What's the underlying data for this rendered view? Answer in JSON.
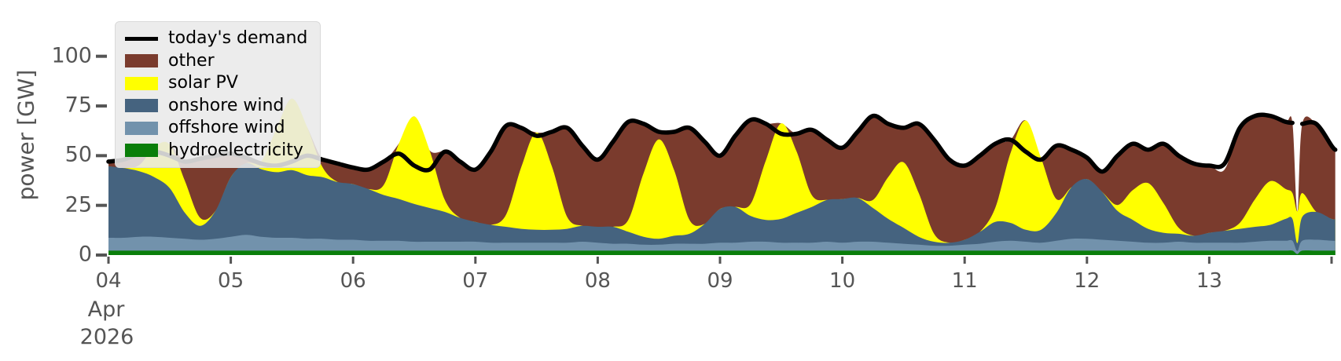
{
  "chart_data": {
    "type": "area",
    "stacked": true,
    "title": "",
    "xlabel": "",
    "ylabel": "power [GW]",
    "ylim": [
      0,
      100
    ],
    "grid": false,
    "legend_position": "upper left",
    "x_sublabel_month": "Apr",
    "x_sublabel_year": "2026",
    "x_ticks": [
      {
        "t": 4,
        "label": "04"
      },
      {
        "t": 5,
        "label": "05"
      },
      {
        "t": 6,
        "label": "06"
      },
      {
        "t": 7,
        "label": "07"
      },
      {
        "t": 8,
        "label": "08"
      },
      {
        "t": 9,
        "label": "09"
      },
      {
        "t": 10,
        "label": "10"
      },
      {
        "t": 11,
        "label": "11"
      },
      {
        "t": 12,
        "label": "12"
      },
      {
        "t": 13,
        "label": "13"
      },
      {
        "t": 14,
        "label": ""
      }
    ],
    "y_ticks": [
      {
        "v": 0,
        "label": "0"
      },
      {
        "v": 25,
        "label": "25"
      },
      {
        "v": 50,
        "label": "50"
      },
      {
        "v": 75,
        "label": "75"
      },
      {
        "v": 100,
        "label": "100"
      }
    ],
    "t": [
      4.0,
      4.125,
      4.25,
      4.375,
      4.5,
      4.625,
      4.75,
      4.875,
      5.0,
      5.125,
      5.25,
      5.375,
      5.5,
      5.625,
      5.75,
      5.875,
      6.0,
      6.125,
      6.25,
      6.375,
      6.5,
      6.625,
      6.75,
      6.875,
      7.0,
      7.125,
      7.25,
      7.375,
      7.5,
      7.625,
      7.75,
      7.875,
      8.0,
      8.125,
      8.25,
      8.375,
      8.5,
      8.625,
      8.75,
      8.875,
      9.0,
      9.125,
      9.25,
      9.375,
      9.5,
      9.625,
      9.75,
      9.875,
      10.0,
      10.125,
      10.25,
      10.375,
      10.5,
      10.625,
      10.75,
      10.875,
      11.0,
      11.125,
      11.25,
      11.375,
      11.5,
      11.625,
      11.75,
      11.875,
      12.0,
      12.125,
      12.25,
      12.375,
      12.5,
      12.625,
      12.75,
      12.875,
      13.0,
      13.125,
      13.25,
      13.375,
      13.5,
      13.625,
      13.68,
      13.72,
      13.76,
      13.875,
      14.0,
      14.03
    ],
    "series": [
      {
        "name": "hydroelectricity",
        "color": "#0A7E0A",
        "values": [
          2.2,
          2.2,
          2.2,
          2.2,
          2.2,
          2.2,
          2.2,
          2.2,
          2.2,
          2.2,
          2.2,
          2.2,
          2.2,
          2.2,
          2.2,
          2.2,
          2.2,
          2.2,
          2.2,
          2.2,
          2.2,
          2.2,
          2.2,
          2.2,
          2.2,
          2.2,
          2.2,
          2.2,
          2.2,
          2.2,
          2.2,
          2.2,
          2.2,
          2.2,
          2.2,
          2.2,
          2.2,
          2.2,
          2.2,
          2.2,
          2.2,
          2.2,
          2.2,
          2.2,
          2.2,
          2.2,
          2.2,
          2.2,
          2.2,
          2.2,
          2.2,
          2.2,
          2.2,
          2.2,
          2.2,
          2.2,
          2.2,
          2.2,
          2.2,
          2.2,
          2.2,
          2.2,
          2.2,
          2.2,
          2.2,
          2.2,
          2.2,
          2.2,
          2.2,
          2.2,
          2.2,
          2.2,
          2.2,
          2.2,
          2.2,
          2.2,
          2.2,
          2.2,
          2.2,
          0.5,
          2.2,
          2.2,
          2.2,
          2.2
        ]
      },
      {
        "name": "offshore wind",
        "color": "#7292AC",
        "values": [
          6.5,
          6.5,
          7,
          7,
          6.5,
          6,
          5.5,
          6,
          7,
          8,
          7,
          6.5,
          6.5,
          6,
          6,
          5.5,
          5.5,
          5,
          5,
          5,
          4.5,
          4.5,
          4.5,
          4.5,
          4.5,
          4,
          4,
          4,
          4,
          4,
          4,
          4.5,
          4,
          3.5,
          3.5,
          3,
          3,
          3.5,
          3.5,
          3.5,
          4,
          4,
          4.5,
          4.5,
          4,
          4,
          4,
          4.5,
          4,
          4.5,
          4.5,
          4,
          3.5,
          3,
          2.5,
          2.5,
          3,
          3.5,
          4.5,
          5,
          4.5,
          4,
          5,
          6,
          6,
          5.5,
          5,
          4.5,
          4,
          4,
          4.5,
          4,
          4,
          4,
          4,
          4.5,
          5,
          5,
          5,
          1.5,
          5,
          5.5,
          5,
          5
        ]
      },
      {
        "name": "onshore wind",
        "color": "#45637F",
        "values": [
          36,
          35,
          33,
          30,
          25,
          13,
          7,
          14,
          30,
          36,
          34,
          33,
          34,
          32,
          31,
          29,
          28,
          26,
          23,
          21,
          19,
          17,
          15,
          12,
          10,
          9,
          8,
          7,
          6.5,
          6.5,
          7,
          8,
          8,
          8.5,
          6,
          4,
          3,
          4,
          5,
          10,
          17,
          18,
          13,
          11,
          12,
          15,
          18,
          21,
          22,
          22,
          17,
          12,
          8,
          4,
          2,
          1.5,
          2.5,
          6,
          10,
          9,
          6,
          6.5,
          14,
          26,
          30,
          24,
          15,
          11,
          7,
          5,
          4,
          3.5,
          5,
          6,
          7,
          7.5,
          8,
          11,
          11,
          4,
          12,
          14,
          11,
          11
        ]
      },
      {
        "name": "solar PV",
        "color": "#FFFF00",
        "values": [
          0,
          0,
          3,
          15,
          22,
          16,
          4,
          0,
          0,
          0,
          4,
          22,
          36,
          24,
          5,
          0,
          0,
          0,
          5,
          28,
          44,
          29,
          6,
          0,
          0,
          0,
          6,
          31,
          49,
          32,
          6,
          0,
          0,
          0,
          6,
          32,
          50,
          33,
          7,
          0,
          0,
          0,
          6,
          30,
          48,
          31,
          6,
          0,
          0,
          0,
          4,
          21,
          33,
          22,
          4,
          0,
          0,
          0,
          7,
          35,
          55,
          36,
          7,
          0,
          0,
          0,
          3,
          15,
          23,
          15,
          3,
          0,
          0,
          0,
          3,
          14,
          22,
          15,
          13,
          16,
          12,
          0,
          0,
          0
        ]
      },
      {
        "name": "other",
        "color": "#7A3B2D",
        "values": [
          2.3,
          4.3,
          5.8,
          0,
          0,
          9.8,
          29.8,
          27.8,
          11.8,
          2.8,
          0,
          0,
          0,
          0,
          3.8,
          9.3,
          8.3,
          9.8,
          11.8,
          0,
          0,
          0,
          24.3,
          28.3,
          26.3,
          36.8,
          44.8,
          19.8,
          0,
          17.3,
          44.8,
          40.3,
          33.8,
          42.8,
          49.3,
          24.8,
          3.8,
          19.3,
          46.3,
          41.3,
          26.8,
          35.8,
          42.3,
          18.3,
          0,
          8.8,
          32.8,
          30.3,
          25.8,
          33.3,
          42.3,
          26.8,
          17.3,
          34.8,
          47.3,
          41.8,
          37.3,
          38.3,
          32.3,
          6.8,
          0,
          0,
          26.8,
          18.8,
          10.8,
          10.3,
          24.8,
          23.3,
          16.8,
          29.8,
          36.3,
          36.3,
          33.8,
          30.8,
          47.8,
          41.8,
          32.8,
          33.8,
          35.3,
          0,
          34.8,
          44.3,
          36.8,
          34.8
        ]
      }
    ],
    "demand_line": {
      "name": "today's demand",
      "color": "#000000",
      "values": [
        47,
        48,
        51,
        52,
        50,
        47,
        48.5,
        50,
        51,
        49,
        46,
        45,
        47,
        50,
        48,
        46,
        44,
        43,
        47,
        51,
        45,
        43,
        52,
        47,
        43,
        52,
        65,
        64,
        60,
        62,
        64,
        55,
        48,
        57,
        67,
        66,
        62,
        62,
        64,
        57,
        50,
        60,
        68,
        66,
        61,
        61,
        63,
        58,
        54,
        62,
        70,
        66,
        64,
        66,
        58,
        48,
        45,
        50,
        56,
        58,
        52,
        48,
        55,
        53,
        49,
        42,
        50,
        56,
        53,
        56,
        50,
        46,
        45,
        46,
        64,
        70,
        70,
        67,
        66.5,
        null,
        66,
        66,
        55,
        53
      ]
    }
  },
  "axes": {
    "ylabel": "power [GW]",
    "x_sublabel_month": "Apr",
    "x_sublabel_year": "2026",
    "tick_color": "#555555"
  },
  "legend": {
    "items": [
      {
        "label": "today's demand",
        "type": "line",
        "color": "#000000"
      },
      {
        "label": "other",
        "type": "patch",
        "color": "#7A3B2D"
      },
      {
        "label": "solar PV",
        "type": "patch",
        "color": "#FFFF00"
      },
      {
        "label": "onshore wind",
        "type": "patch",
        "color": "#45637F"
      },
      {
        "label": "offshore wind",
        "type": "patch",
        "color": "#7292AC"
      },
      {
        "label": "hydroelectricity",
        "type": "patch",
        "color": "#0A7E0A"
      }
    ]
  }
}
